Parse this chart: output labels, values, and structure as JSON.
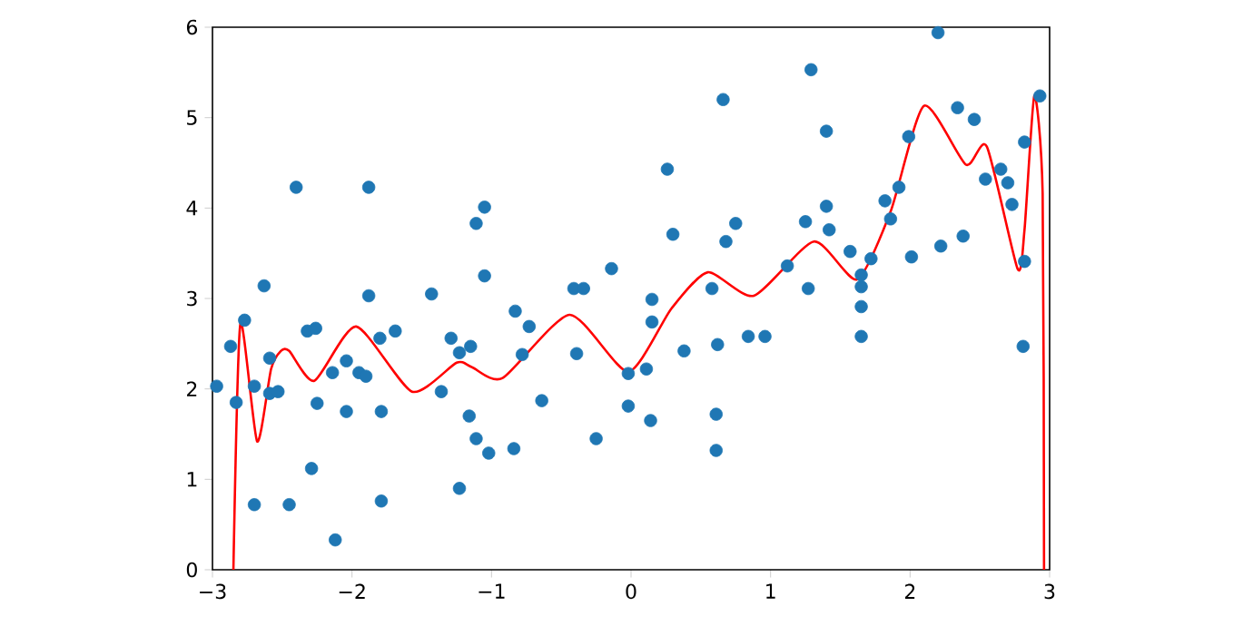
{
  "chart_data": {
    "type": "scatter",
    "xlim": [
      -3,
      3
    ],
    "ylim": [
      0,
      6
    ],
    "xticks": [
      {
        "value": -3,
        "label": "−3"
      },
      {
        "value": -2,
        "label": "−2"
      },
      {
        "value": -1,
        "label": "−1"
      },
      0,
      1,
      2,
      3
    ],
    "yticks": [
      0,
      1,
      2,
      3,
      4,
      5,
      6
    ],
    "series": [
      {
        "color": "#1f77b4",
        "x": [
          -2.97,
          -2.87,
          -2.83,
          -2.77,
          -2.7,
          -2.7,
          -2.63,
          -2.59,
          -2.59,
          -2.53,
          -2.45,
          -2.4,
          -2.32,
          -2.26,
          -2.29,
          -2.25,
          -2.14,
          -2.12,
          -2.04,
          -2.04,
          -1.95,
          -1.9,
          -1.88,
          -1.88,
          -1.8,
          -1.79,
          -1.79,
          -1.69,
          -1.43,
          -1.36,
          -1.29,
          -1.23,
          -1.23,
          -1.15,
          -1.16,
          -1.11,
          -1.11,
          -1.05,
          -1.05,
          -1.02,
          -0.84,
          -0.83,
          -0.73,
          -0.78,
          -0.64,
          -0.41,
          -0.34,
          -0.39,
          -0.25,
          -0.14,
          -0.02,
          -0.02,
          0.11,
          0.14,
          0.15,
          0.15,
          0.26,
          0.3,
          0.38,
          0.58,
          0.62,
          0.61,
          0.61,
          0.66,
          0.68,
          0.75,
          0.84,
          0.96,
          1.12,
          1.27,
          1.25,
          1.29,
          1.4,
          1.4,
          1.42,
          1.57,
          1.65,
          1.65,
          1.65,
          1.65,
          1.72,
          1.82,
          1.86,
          1.92,
          1.99,
          2.01,
          2.2,
          2.22,
          2.34,
          2.46,
          2.38,
          2.54,
          2.65,
          2.7,
          2.73,
          2.82,
          2.82,
          2.81,
          2.93
        ],
        "values": [
          2.03,
          2.47,
          1.85,
          2.76,
          2.03,
          0.72,
          3.14,
          2.34,
          1.95,
          1.97,
          0.72,
          4.23,
          2.64,
          2.67,
          1.12,
          1.84,
          2.18,
          0.33,
          2.31,
          1.75,
          2.18,
          2.14,
          4.23,
          3.03,
          2.56,
          1.75,
          0.76,
          2.64,
          3.05,
          1.97,
          2.56,
          0.9,
          2.4,
          2.47,
          1.7,
          1.45,
          3.83,
          4.01,
          3.25,
          1.29,
          1.34,
          2.86,
          2.69,
          2.38,
          1.87,
          3.11,
          3.11,
          2.39,
          1.45,
          3.33,
          2.17,
          1.81,
          2.22,
          1.65,
          2.99,
          2.74,
          4.43,
          3.71,
          2.42,
          3.11,
          2.49,
          1.72,
          1.32,
          5.2,
          3.63,
          3.83,
          2.58,
          2.58,
          3.36,
          3.11,
          3.85,
          5.53,
          4.85,
          4.02,
          3.76,
          3.52,
          3.26,
          3.13,
          2.91,
          2.58,
          3.44,
          4.08,
          3.88,
          4.23,
          4.79,
          3.46,
          5.94,
          3.58,
          5.11,
          4.98,
          3.69,
          4.32,
          4.43,
          4.28,
          4.04,
          4.73,
          3.41,
          2.47,
          5.24
        ]
      },
      {
        "type": "line",
        "color": "#ff0000",
        "marker": "none",
        "x": [
          -2.85,
          -2.8,
          -2.68,
          -2.58,
          -2.51,
          -2.45,
          -2.27,
          -1.97,
          -1.57,
          -1.25,
          -1.14,
          -0.92,
          -0.44,
          -0.02,
          0.29,
          0.55,
          0.88,
          1.31,
          1.62,
          1.86,
          2.1,
          2.4,
          2.55,
          2.77,
          2.82,
          2.89,
          2.95,
          2.96
        ],
        "values": [
          0,
          2.72,
          1.42,
          2.22,
          2.42,
          2.42,
          2.09,
          2.69,
          1.97,
          2.29,
          2.24,
          2.12,
          2.82,
          2.19,
          2.89,
          3.29,
          3.03,
          3.63,
          3.21,
          3.96,
          5.13,
          4.48,
          4.68,
          3.33,
          3.76,
          5.24,
          4.16,
          0
        ]
      }
    ]
  }
}
